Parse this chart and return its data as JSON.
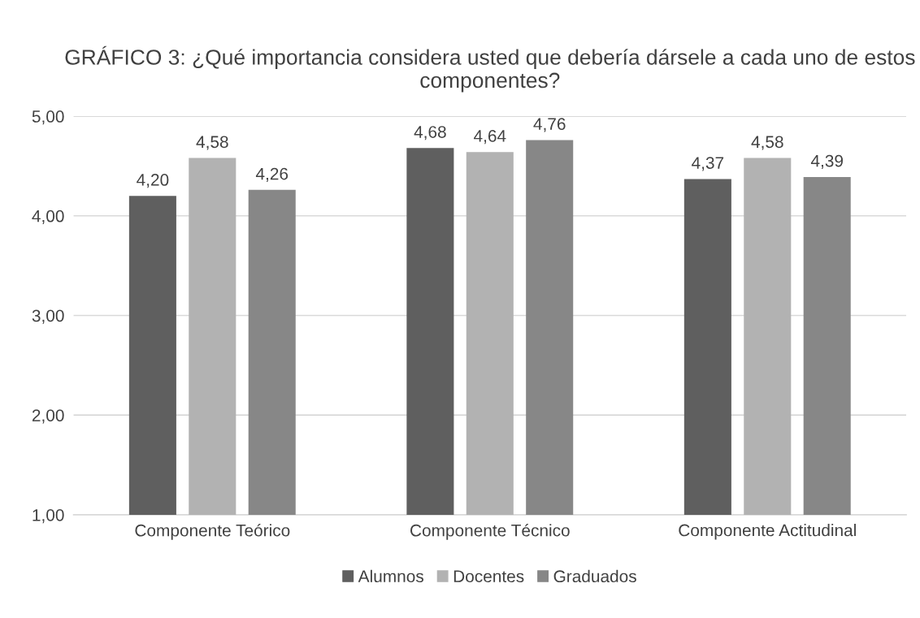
{
  "chart_data": {
    "type": "bar",
    "title": "GRÁFICO 3: ¿Qué importancia considera usted que debería dársele a cada uno de estos componentes?",
    "categories": [
      "Componente Teórico",
      "Componente Técnico",
      "Componente Actitudinal"
    ],
    "series": [
      {
        "name": "Alumnos",
        "color": "#5f5f5f",
        "values": [
          4.2,
          4.68,
          4.37
        ],
        "value_labels": [
          "4,20",
          "4,68",
          "4,37"
        ]
      },
      {
        "name": "Docentes",
        "color": "#b2b2b2",
        "values": [
          4.58,
          4.64,
          4.58
        ],
        "value_labels": [
          "4,58",
          "4,64",
          "4,58"
        ]
      },
      {
        "name": "Graduados",
        "color": "#878787",
        "values": [
          4.26,
          4.76,
          4.39
        ],
        "value_labels": [
          "4,26",
          "4,76",
          "4,39"
        ]
      }
    ],
    "ylim": [
      1,
      5
    ],
    "yticks": [
      {
        "value": 1,
        "label": "1,00"
      },
      {
        "value": 2,
        "label": "2,00"
      },
      {
        "value": 3,
        "label": "3,00"
      },
      {
        "value": 4,
        "label": "4,00"
      },
      {
        "value": 5,
        "label": "5,00"
      }
    ],
    "grid": "y",
    "legend": "bottom"
  }
}
